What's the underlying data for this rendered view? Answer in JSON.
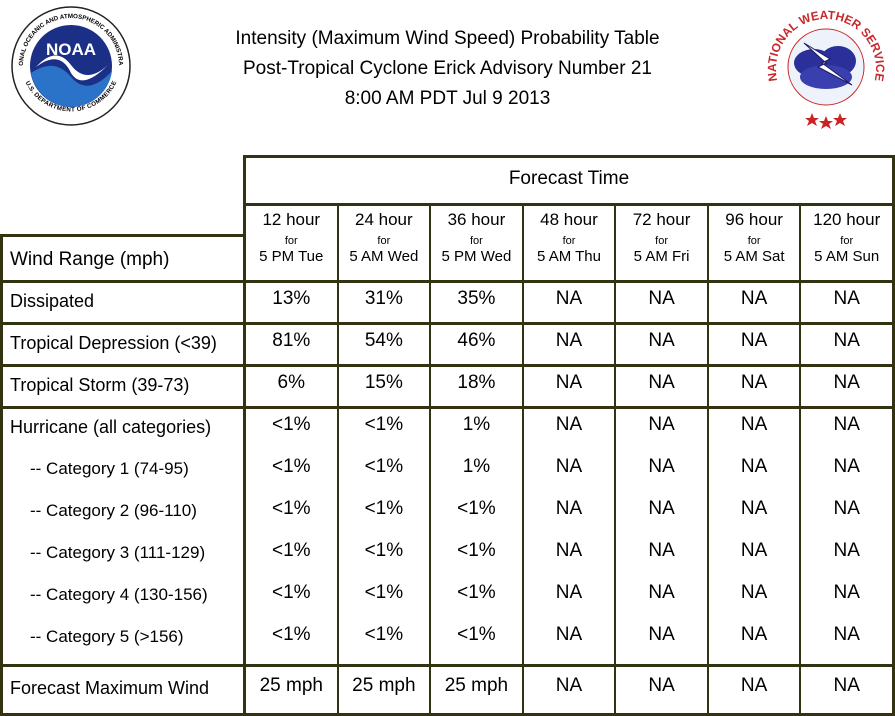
{
  "header": {
    "title_lines": [
      "Intensity (Maximum Wind Speed) Probability Table",
      "Post-Tropical Cyclone Erick Advisory Number 21",
      "8:00 AM PDT Jul 9 2013"
    ]
  },
  "logos": {
    "noaa": {
      "label": "NOAA",
      "ring_text": "NATIONAL OCEANIC AND ATMOSPHERIC ADMINISTRATION",
      "bottom_text": "U.S. DEPARTMENT OF COMMERCE"
    },
    "nws": {
      "ring_text": "NATIONAL WEATHER SERVICE"
    }
  },
  "table": {
    "group_header": "Forecast Time",
    "row_header_label": "Wind Range (mph)",
    "columns": [
      {
        "hours": "12 hour",
        "for": "for",
        "time": "5 PM Tue"
      },
      {
        "hours": "24 hour",
        "for": "for",
        "time": "5 AM Wed"
      },
      {
        "hours": "36 hour",
        "for": "for",
        "time": "5 PM Wed"
      },
      {
        "hours": "48 hour",
        "for": "for",
        "time": "5 AM Thu"
      },
      {
        "hours": "72 hour",
        "for": "for",
        "time": "5 AM Fri"
      },
      {
        "hours": "96 hour",
        "for": "for",
        "time": "5 AM Sat"
      },
      {
        "hours": "120 hour",
        "for": "for",
        "time": "5 AM Sun"
      }
    ],
    "rows": [
      {
        "label": "Dissipated",
        "cells": [
          "13%",
          "31%",
          "35%",
          "NA",
          "NA",
          "NA",
          "NA"
        ]
      },
      {
        "label": "Tropical Depression (<39)",
        "cells": [
          "81%",
          "54%",
          "46%",
          "NA",
          "NA",
          "NA",
          "NA"
        ]
      },
      {
        "label": "Tropical Storm (39-73)",
        "cells": [
          "6%",
          "15%",
          "18%",
          "NA",
          "NA",
          "NA",
          "NA"
        ]
      },
      {
        "label": "Hurricane (all categories)",
        "cells": [
          "<1%",
          "<1%",
          "1%",
          "NA",
          "NA",
          "NA",
          "NA"
        ]
      },
      {
        "label": "-- Category 1 (74-95)",
        "cells": [
          "<1%",
          "<1%",
          "1%",
          "NA",
          "NA",
          "NA",
          "NA"
        ]
      },
      {
        "label": "-- Category 2 (96-110)",
        "cells": [
          "<1%",
          "<1%",
          "<1%",
          "NA",
          "NA",
          "NA",
          "NA"
        ]
      },
      {
        "label": "-- Category 3 (111-129)",
        "cells": [
          "<1%",
          "<1%",
          "<1%",
          "NA",
          "NA",
          "NA",
          "NA"
        ]
      },
      {
        "label": "-- Category 4 (130-156)",
        "cells": [
          "<1%",
          "<1%",
          "<1%",
          "NA",
          "NA",
          "NA",
          "NA"
        ]
      },
      {
        "label": "-- Category 5 (>156)",
        "cells": [
          "<1%",
          "<1%",
          "<1%",
          "NA",
          "NA",
          "NA",
          "NA"
        ]
      },
      {
        "label": "Forecast Maximum Wind",
        "cells": [
          "25 mph",
          "25 mph",
          "25 mph",
          "NA",
          "NA",
          "NA",
          "NA"
        ]
      }
    ]
  }
}
